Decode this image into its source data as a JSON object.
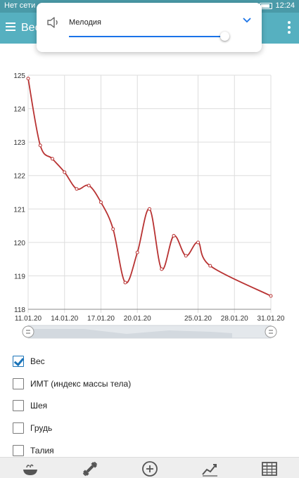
{
  "status_bar": {
    "network": "Нет сети",
    "time": "12:24"
  },
  "app_bar": {
    "title": "Вес"
  },
  "volume_panel": {
    "label": "Мелодия",
    "level_fraction": 0.97
  },
  "chart_data": {
    "type": "line",
    "y_ticks": [
      "118",
      "119",
      "120",
      "121",
      "122",
      "123",
      "124",
      "125"
    ],
    "x_ticks": [
      "11.01.20",
      "14.01.20",
      "17.01.20",
      "20.01.20",
      "25.01.20",
      "28.01.20",
      "31.01.20"
    ],
    "ylim": [
      118,
      125
    ],
    "series": [
      {
        "color": "#b83232",
        "points": [
          {
            "x": "11.01.20",
            "y": 124.9
          },
          {
            "x": "12.01.20",
            "y": 122.9
          },
          {
            "x": "13.01.20",
            "y": 122.5
          },
          {
            "x": "14.01.20",
            "y": 122.1
          },
          {
            "x": "15.01.20",
            "y": 121.6
          },
          {
            "x": "16.01.20",
            "y": 121.7
          },
          {
            "x": "17.01.20",
            "y": 121.2
          },
          {
            "x": "18.01.20",
            "y": 120.4
          },
          {
            "x": "19.01.20",
            "y": 118.8
          },
          {
            "x": "20.01.20",
            "y": 119.7
          },
          {
            "x": "21.01.20",
            "y": 121.0
          },
          {
            "x": "22.01.20",
            "y": 119.2
          },
          {
            "x": "23.01.20",
            "y": 120.2
          },
          {
            "x": "24.01.20",
            "y": 119.6
          },
          {
            "x": "25.01.20",
            "y": 120.0
          },
          {
            "x": "26.01.20",
            "y": 119.3
          },
          {
            "x": "31.01.20",
            "y": 118.4
          }
        ]
      }
    ],
    "grid": true
  },
  "checklist": [
    {
      "label": "Вес",
      "checked": true
    },
    {
      "label": "ИМТ (индекс массы тела)",
      "checked": false
    },
    {
      "label": "Шея",
      "checked": false
    },
    {
      "label": "Грудь",
      "checked": false
    },
    {
      "label": "Талия",
      "checked": false
    }
  ],
  "bottom_nav": [
    {
      "icon": "food-bowl-icon"
    },
    {
      "icon": "dumbbell-icon"
    },
    {
      "icon": "add-circle-icon"
    },
    {
      "icon": "trend-chart-icon"
    },
    {
      "icon": "table-icon"
    }
  ],
  "colors": {
    "app_bar": "#56b0c0",
    "status_bar": "#4a9aa8",
    "line": "#b83232",
    "accent": "#1a73e8"
  }
}
